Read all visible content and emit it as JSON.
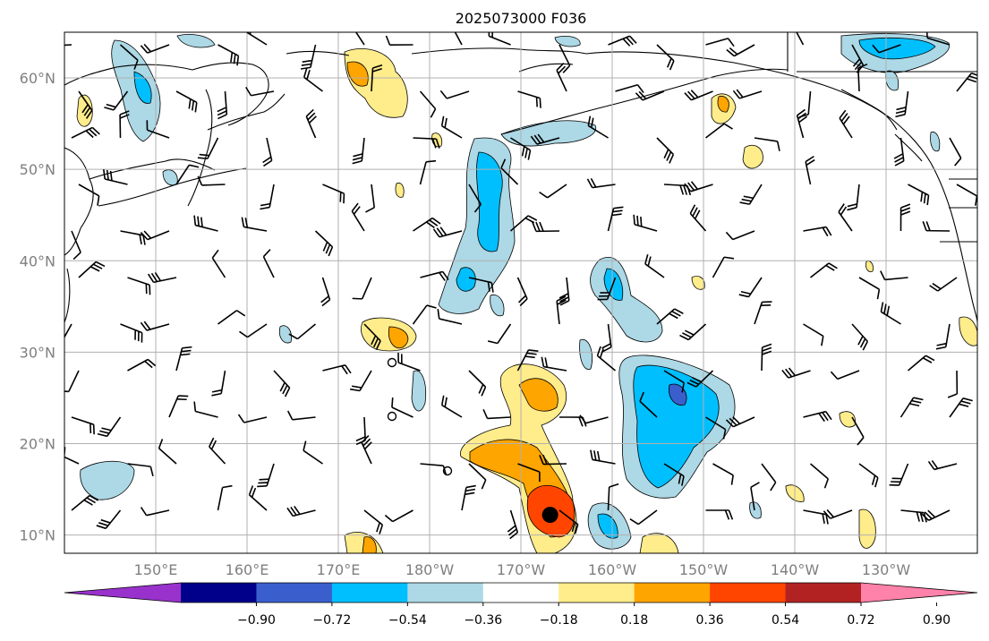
{
  "title": "2025073000 F036",
  "map": {
    "lat_labels": [
      "60°N",
      "50°N",
      "40°N",
      "30°N",
      "20°N",
      "10°N"
    ],
    "lat_values": [
      60,
      50,
      40,
      30,
      20,
      10
    ],
    "lon_labels": [
      "150°E",
      "160°E",
      "170°E",
      "180°W",
      "170°W",
      "160°W",
      "150°W",
      "140°W",
      "130°W"
    ],
    "lon_values": [
      150,
      160,
      170,
      180,
      190,
      200,
      210,
      220,
      230
    ],
    "extent": {
      "lon_min": 140,
      "lon_max": 240,
      "lat_min": 8,
      "lat_max": 65
    },
    "storm_marker": {
      "lon": 193.2,
      "lat": 12.2
    }
  },
  "colorbar": {
    "tick_labels": [
      "−0.90",
      "−0.72",
      "−0.54",
      "−0.36",
      "−0.18",
      "0.18",
      "0.36",
      "0.54",
      "0.72",
      "0.90"
    ],
    "colors": [
      "#9932cc",
      "#00008b",
      "#3a5fcd",
      "#00bfff",
      "#add8e6",
      "#ffffff",
      "#ffec8b",
      "#ffa500",
      "#ff4500",
      "#b22222",
      "#ff82ab"
    ]
  }
}
